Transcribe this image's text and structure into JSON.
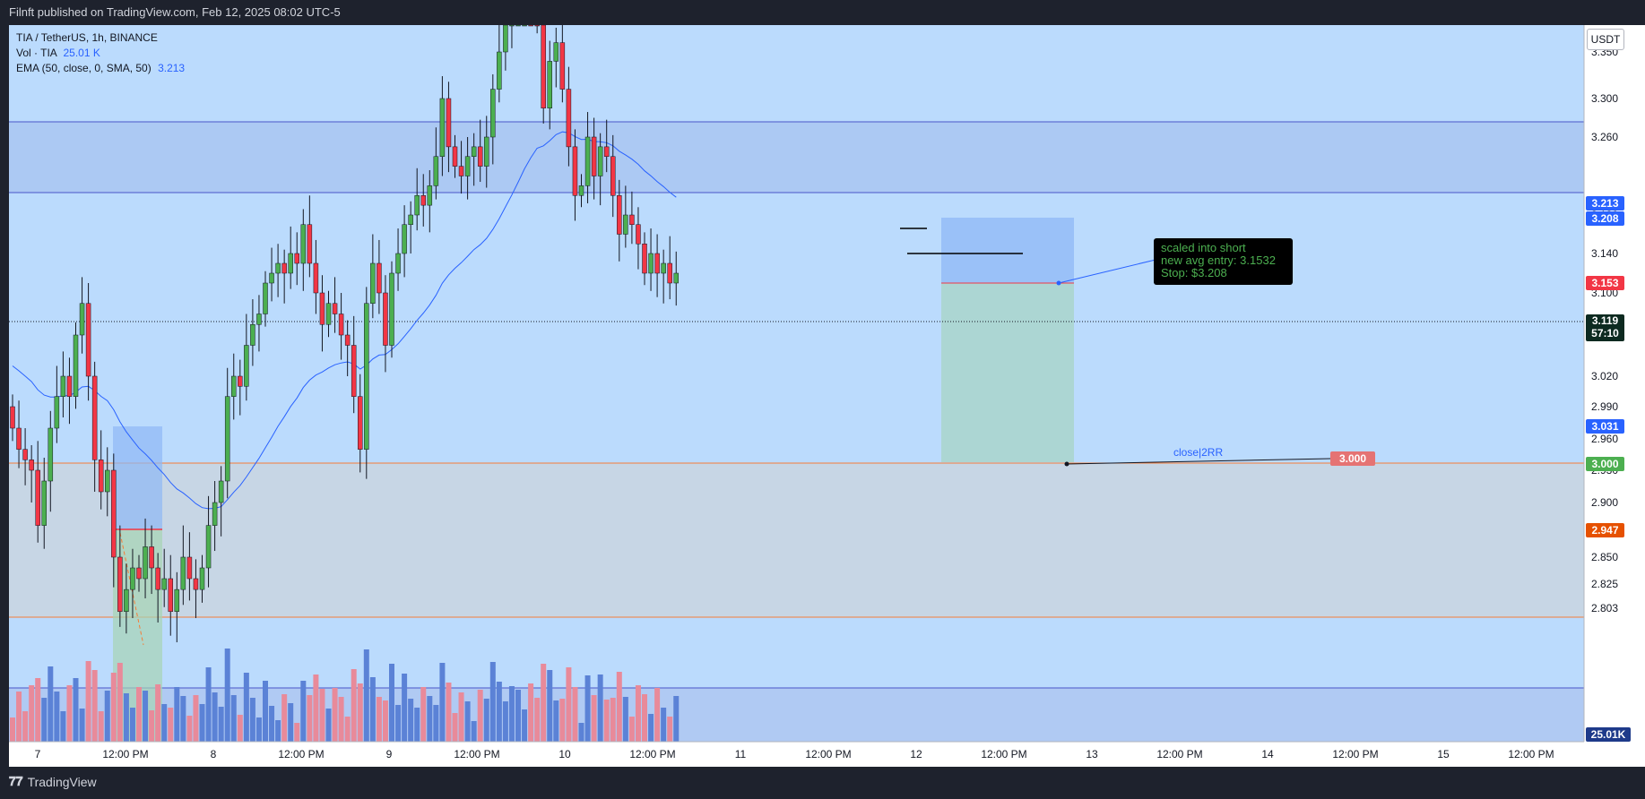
{
  "header": {
    "published": "Filnft published on TradingView.com, Feb 12, 2025 08:02 UTC-5"
  },
  "legend": {
    "symbol": "TIA / TetherUS, 1h, BINANCE",
    "vol_label": "Vol · TIA",
    "vol_value": "25.01 K",
    "ema_label": "EMA (50, close, 0, SMA, 50)",
    "ema_value": "3.213"
  },
  "currency_button": "USDT",
  "footer": {
    "brand": "TradingView"
  },
  "annotation": {
    "line1": "scaled into short",
    "line2": "new avg entry: 3.1532",
    "line3": "Stop: $3.208",
    "close_label": "close|2RR",
    "target_tag": "3.000"
  },
  "price_tags": {
    "ema": "3.213",
    "stop": "3.208",
    "entry": "3.153",
    "last": "3.119",
    "countdown": "57:10",
    "ema_left": "3.031",
    "target": "3.000",
    "prev_entry": "2.947",
    "volume": "25.01K"
  },
  "colors": {
    "background": "#bbdbfd",
    "up": "#4caf50",
    "down": "#f23645",
    "ema": "#2962ff",
    "vol_up": "#5b82d6",
    "vol_down": "#e88a9a"
  },
  "chart_data": {
    "type": "candlestick",
    "symbol": "TIA / TetherUS",
    "timeframe": "1h",
    "ylim": [
      2.78,
      3.38
    ],
    "y_ticks": [
      "3.350",
      "3.300",
      "3.260",
      "3.180",
      "3.140",
      "3.100",
      "3.060",
      "3.020",
      "2.990",
      "2.960",
      "2.930",
      "2.900",
      "2.875",
      "2.850",
      "2.825",
      "2.803"
    ],
    "x_ticks": [
      "7",
      "12:00 PM",
      "8",
      "12:00 PM",
      "9",
      "12:00 PM",
      "10",
      "12:00 PM",
      "11",
      "12:00 PM",
      "12",
      "12:00 PM",
      "13",
      "12:00 PM",
      "14",
      "12:00 PM",
      "15",
      "12:00 PM"
    ],
    "levels": {
      "zone_top": 3.293,
      "zone_bottom": 3.226,
      "support_zone_top": 2.998,
      "support_zone_bottom": 2.875,
      "low_line": 2.818
    },
    "trade": {
      "entry": 3.1532,
      "stop": 3.208,
      "target": 3.0,
      "current": 3.119
    },
    "ema_value": 3.213,
    "volume_last": "25.01K",
    "closes": [
      2.97,
      2.95,
      2.94,
      2.93,
      2.88,
      2.92,
      2.97,
      3.0,
      3.02,
      3.0,
      3.06,
      3.09,
      3.02,
      2.94,
      2.91,
      2.93,
      2.85,
      2.8,
      2.82,
      2.84,
      2.83,
      2.86,
      2.84,
      2.82,
      2.83,
      2.8,
      2.82,
      2.85,
      2.83,
      2.82,
      2.84,
      2.88,
      2.9,
      2.92,
      3.0,
      3.02,
      3.01,
      3.05,
      3.07,
      3.08,
      3.11,
      3.12,
      3.13,
      3.12,
      3.14,
      3.13,
      3.17,
      3.13,
      3.1,
      3.07,
      3.09,
      3.08,
      3.06,
      3.05,
      3.0,
      2.95,
      3.09,
      3.13,
      3.1,
      3.05,
      3.12,
      3.14,
      3.17,
      3.18,
      3.2,
      3.19,
      3.21,
      3.24,
      3.3,
      3.25,
      3.23,
      3.22,
      3.24,
      3.25,
      3.23,
      3.26,
      3.31,
      3.35,
      3.38,
      3.39,
      3.42,
      3.44,
      3.42,
      3.4,
      3.29,
      3.34,
      3.36,
      3.31,
      3.25,
      3.2,
      3.21,
      3.26,
      3.22,
      3.25,
      3.24,
      3.2,
      3.16,
      3.18,
      3.17,
      3.15,
      3.12,
      3.14,
      3.12,
      3.13,
      3.11,
      3.12
    ]
  }
}
